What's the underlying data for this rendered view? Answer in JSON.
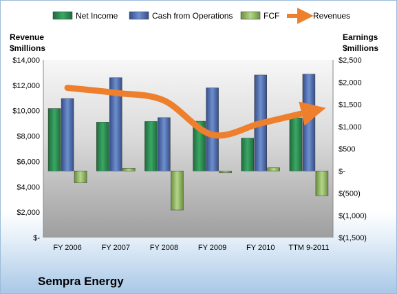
{
  "chart_data": {
    "type": "bar",
    "title": "Sempra Energy",
    "categories": [
      "FY 2006",
      "FY 2007",
      "FY 2008",
      "FY 2009",
      "FY 2010",
      "TTM 9-2011"
    ],
    "left_axis": {
      "label_line1": "Revenue",
      "label_line2": "$millions",
      "range": [
        0,
        14000
      ],
      "ticks": [
        "$-",
        "$2,000",
        "$4,000",
        "$6,000",
        "$8,000",
        "$10,000",
        "$12,000",
        "$14,000"
      ]
    },
    "right_axis": {
      "label_line1": "Earnings",
      "label_line2": "$millions",
      "range": [
        -1500,
        2500
      ],
      "ticks": [
        "$(1,500)",
        "$(1,000)",
        "$(500)",
        "$-",
        "$500",
        "$1,000",
        "$1,500",
        "$2,000",
        "$2,500"
      ]
    },
    "series": [
      {
        "name": "Net Income",
        "type": "bar",
        "axis": "right",
        "color": "#2e8b57",
        "values": [
          1406,
          1099,
          1113,
          1119,
          739,
          1196
        ]
      },
      {
        "name": "Cash from Operations",
        "type": "bar",
        "axis": "right",
        "color": "#4f6eb0",
        "values": [
          1630,
          2100,
          1200,
          1870,
          2160,
          2180
        ]
      },
      {
        "name": "FCF",
        "type": "bar",
        "axis": "right",
        "color": "#8db65c",
        "values": [
          -270,
          60,
          -880,
          -40,
          70,
          -560
        ]
      },
      {
        "name": "Revenues",
        "type": "line",
        "axis": "left",
        "color": "#ee7f2d",
        "values": [
          11800,
          11400,
          10800,
          8100,
          9000,
          9900
        ]
      }
    ],
    "legend_position": "top",
    "grid": false
  }
}
